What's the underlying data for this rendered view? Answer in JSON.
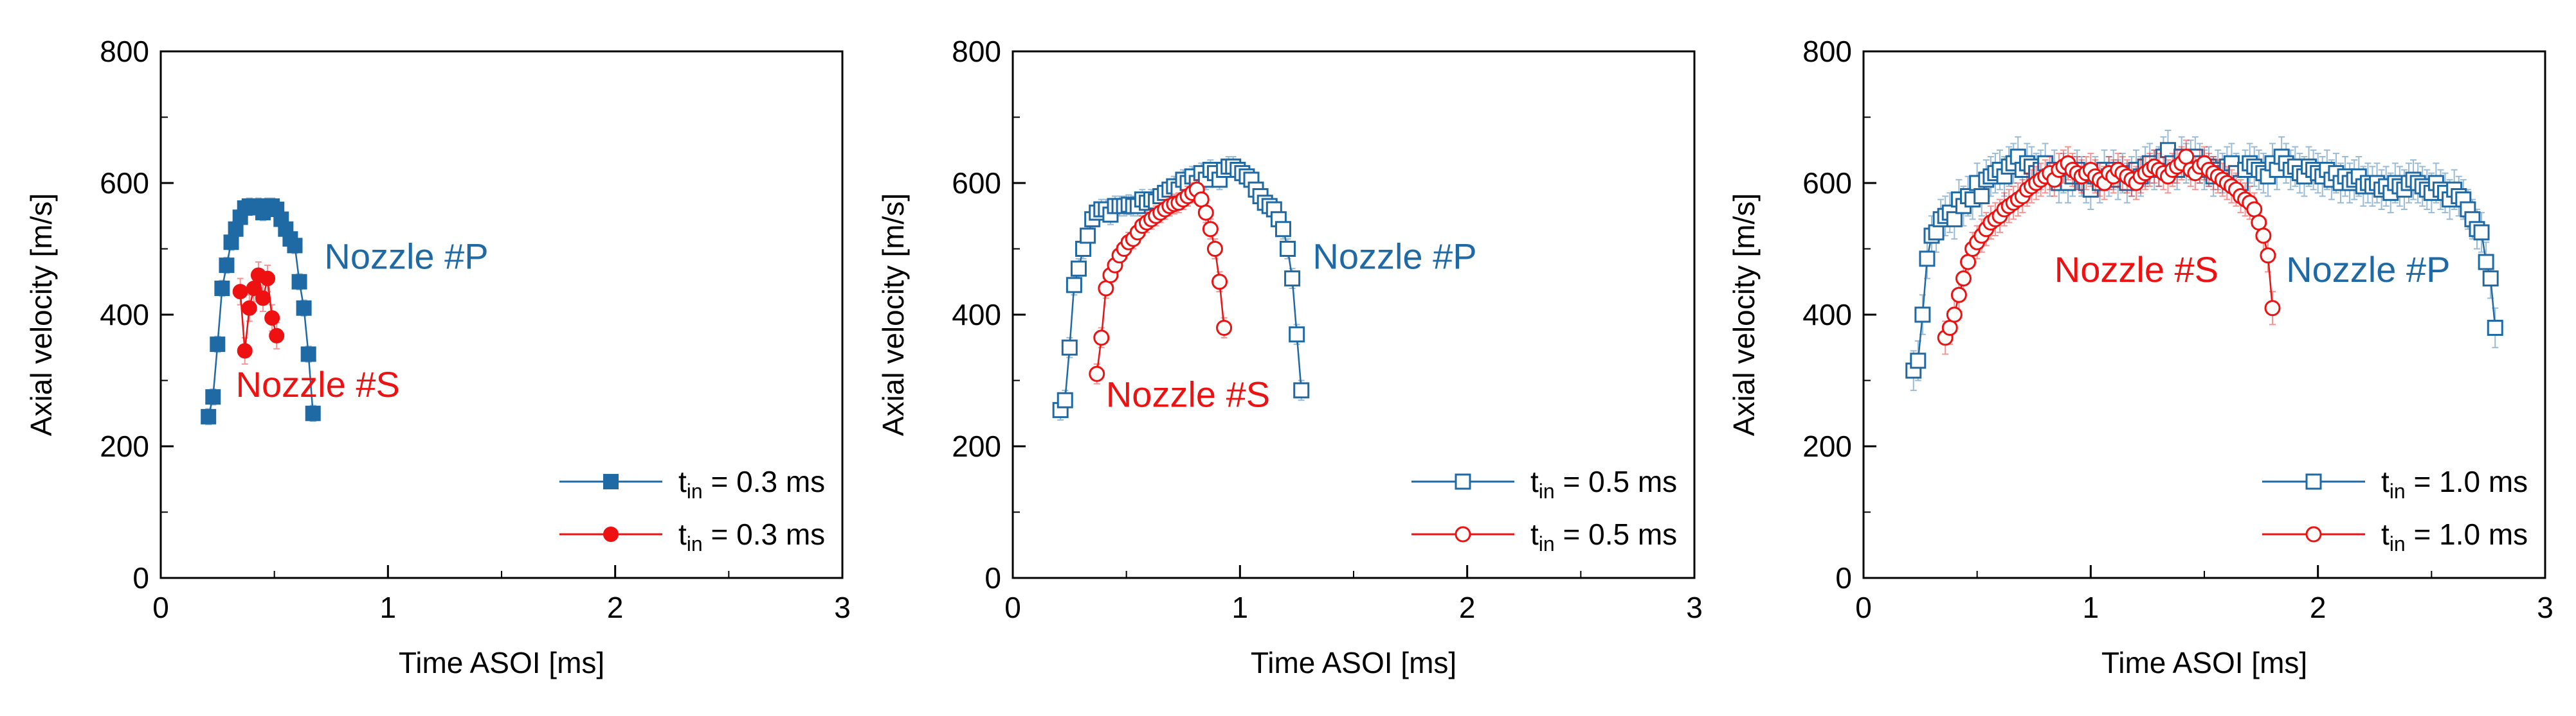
{
  "chart_data": [
    {
      "type": "scatter",
      "xlabel": "Time ASOI [ms]",
      "ylabel": "Axial velocity [m/s]",
      "xlim": [
        0,
        3
      ],
      "ylim": [
        0,
        800
      ],
      "xticks": [
        "0",
        "1",
        "2",
        "3"
      ],
      "yticks": [
        "0",
        "200",
        "400",
        "600",
        "800"
      ],
      "annotations": [
        {
          "text": "Nozzle #P",
          "color": "#1f6aa5",
          "x": 0.72,
          "y": 470
        },
        {
          "text": "Nozzle #S",
          "color": "#ee1111",
          "x": 0.33,
          "y": 275
        }
      ],
      "legend": {
        "position": "bottom-right"
      },
      "series": [
        {
          "name": "t_in = 0.3 ms",
          "legend_main": "t",
          "legend_sub": "in",
          "legend_rest": " = 0.3 ms",
          "color": "#1f6aa5",
          "marker": "filled-square",
          "x": [
            0.21,
            0.23,
            0.25,
            0.27,
            0.29,
            0.31,
            0.33,
            0.35,
            0.37,
            0.39,
            0.41,
            0.43,
            0.45,
            0.47,
            0.49,
            0.51,
            0.53,
            0.55,
            0.57,
            0.59,
            0.61,
            0.63,
            0.65,
            0.67
          ],
          "y": [
            245,
            275,
            355,
            440,
            475,
            510,
            530,
            548,
            562,
            565,
            563,
            565,
            555,
            565,
            565,
            560,
            545,
            530,
            515,
            505,
            450,
            410,
            340,
            250
          ],
          "err": 12
        },
        {
          "name": "t_in = 0.3 ms",
          "legend_main": "t",
          "legend_sub": "in",
          "legend_rest": " = 0.3 ms",
          "color": "#ee1111",
          "marker": "filled-circle",
          "x": [
            0.35,
            0.37,
            0.39,
            0.41,
            0.43,
            0.45,
            0.47,
            0.49,
            0.51
          ],
          "y": [
            435,
            345,
            410,
            440,
            460,
            425,
            455,
            395,
            368
          ],
          "err": 20
        }
      ]
    },
    {
      "type": "scatter",
      "xlabel": "Time ASOI [ms]",
      "ylabel": "Axial velocity [m/s]",
      "xlim": [
        0,
        3
      ],
      "ylim": [
        0,
        800
      ],
      "xticks": [
        "0",
        "1",
        "2",
        "3"
      ],
      "yticks": [
        "0",
        "200",
        "400",
        "600",
        "800"
      ],
      "annotations": [
        {
          "text": "Nozzle #P",
          "color": "#1f6aa5",
          "x": 1.32,
          "y": 470
        },
        {
          "text": "Nozzle #S",
          "color": "#ee1111",
          "x": 0.41,
          "y": 260
        }
      ],
      "legend": {
        "position": "bottom-right"
      },
      "series": [
        {
          "name": "t_in = 0.5 ms",
          "legend_main": "t",
          "legend_sub": "in",
          "legend_rest": " = 0.5 ms",
          "color": "#1f6aa5",
          "marker": "open-square",
          "x": [
            0.21,
            0.23,
            0.25,
            0.27,
            0.29,
            0.31,
            0.33,
            0.35,
            0.37,
            0.39,
            0.41,
            0.43,
            0.45,
            0.47,
            0.49,
            0.51,
            0.53,
            0.55,
            0.57,
            0.59,
            0.61,
            0.63,
            0.65,
            0.67,
            0.69,
            0.71,
            0.73,
            0.75,
            0.77,
            0.79,
            0.81,
            0.83,
            0.85,
            0.87,
            0.89,
            0.91,
            0.93,
            0.95,
            0.97,
            0.99,
            1.01,
            1.03,
            1.05,
            1.07,
            1.09,
            1.11,
            1.13,
            1.15,
            1.17,
            1.19,
            1.21,
            1.23,
            1.25,
            1.27
          ],
          "y": [
            255,
            270,
            350,
            445,
            470,
            500,
            520,
            545,
            555,
            560,
            560,
            552,
            565,
            565,
            565,
            567,
            565,
            565,
            575,
            570,
            575,
            572,
            580,
            585,
            590,
            595,
            590,
            605,
            600,
            610,
            600,
            615,
            605,
            620,
            615,
            605,
            620,
            625,
            625,
            620,
            615,
            610,
            605,
            590,
            580,
            570,
            565,
            560,
            545,
            530,
            500,
            455,
            370,
            285
          ],
          "err": 15
        },
        {
          "name": "t_in = 0.5 ms",
          "legend_main": "t",
          "legend_sub": "in",
          "legend_rest": " = 0.5 ms",
          "color": "#ee1111",
          "marker": "open-circle",
          "x": [
            0.37,
            0.39,
            0.41,
            0.43,
            0.45,
            0.47,
            0.49,
            0.51,
            0.53,
            0.55,
            0.57,
            0.59,
            0.61,
            0.63,
            0.65,
            0.67,
            0.69,
            0.71,
            0.73,
            0.75,
            0.77,
            0.79,
            0.81,
            0.83,
            0.85,
            0.87,
            0.89,
            0.91,
            0.93
          ],
          "y": [
            310,
            365,
            440,
            460,
            475,
            490,
            500,
            510,
            515,
            525,
            535,
            540,
            545,
            550,
            555,
            560,
            565,
            568,
            570,
            575,
            580,
            585,
            590,
            575,
            555,
            530,
            500,
            450,
            380
          ],
          "err": 15
        }
      ]
    },
    {
      "type": "scatter",
      "xlabel": "Time ASOI [ms]",
      "ylabel": "Axial velocity [m/s]",
      "xlim": [
        0,
        3
      ],
      "ylim": [
        0,
        800
      ],
      "xticks": [
        "0",
        "1",
        "2",
        "3"
      ],
      "yticks": [
        "0",
        "200",
        "400",
        "600",
        "800"
      ],
      "annotations": [
        {
          "text": "Nozzle #S",
          "color": "#ee1111",
          "x": 0.84,
          "y": 450
        },
        {
          "text": "Nozzle #P",
          "color": "#1f6aa5",
          "x": 1.86,
          "y": 450
        }
      ],
      "legend": {
        "position": "bottom-right"
      },
      "series": [
        {
          "name": "t_in = 1.0 ms",
          "legend_main": "t",
          "legend_sub": "in",
          "legend_rest": " = 1.0 ms",
          "color": "#1f6aa5",
          "marker": "open-square",
          "x": [
            0.22,
            0.24,
            0.26,
            0.28,
            0.3,
            0.32,
            0.34,
            0.36,
            0.38,
            0.4,
            0.42,
            0.44,
            0.46,
            0.48,
            0.5,
            0.52,
            0.54,
            0.56,
            0.58,
            0.6,
            0.62,
            0.64,
            0.66,
            0.68,
            0.7,
            0.72,
            0.74,
            0.76,
            0.78,
            0.8,
            0.82,
            0.84,
            0.86,
            0.88,
            0.9,
            0.92,
            0.94,
            0.96,
            0.98,
            1.0,
            1.02,
            1.04,
            1.06,
            1.08,
            1.1,
            1.12,
            1.14,
            1.16,
            1.18,
            1.2,
            1.22,
            1.24,
            1.26,
            1.28,
            1.3,
            1.32,
            1.34,
            1.36,
            1.38,
            1.4,
            1.42,
            1.44,
            1.46,
            1.48,
            1.5,
            1.52,
            1.54,
            1.56,
            1.58,
            1.6,
            1.62,
            1.64,
            1.66,
            1.68,
            1.7,
            1.72,
            1.74,
            1.76,
            1.78,
            1.8,
            1.82,
            1.84,
            1.86,
            1.88,
            1.9,
            1.92,
            1.94,
            1.96,
            1.98,
            2.0,
            2.02,
            2.04,
            2.06,
            2.08,
            2.1,
            2.12,
            2.14,
            2.16,
            2.18,
            2.2,
            2.22,
            2.24,
            2.26,
            2.28,
            2.3,
            2.32,
            2.34,
            2.36,
            2.38,
            2.4,
            2.42,
            2.44,
            2.46,
            2.48,
            2.5,
            2.52,
            2.54,
            2.56,
            2.58,
            2.6,
            2.62,
            2.64,
            2.66,
            2.68,
            2.7,
            2.72,
            2.74,
            2.76,
            2.78
          ],
          "y": [
            315,
            330,
            400,
            485,
            520,
            525,
            545,
            550,
            555,
            545,
            575,
            565,
            580,
            575,
            600,
            580,
            605,
            610,
            615,
            620,
            610,
            625,
            630,
            640,
            620,
            630,
            625,
            615,
            620,
            630,
            610,
            620,
            600,
            615,
            600,
            610,
            620,
            610,
            600,
            590,
            610,
            600,
            620,
            610,
            620,
            605,
            615,
            600,
            610,
            620,
            610,
            625,
            630,
            620,
            625,
            640,
            650,
            630,
            620,
            640,
            630,
            635,
            640,
            630,
            620,
            625,
            610,
            620,
            615,
            625,
            630,
            615,
            600,
            620,
            630,
            625,
            620,
            615,
            610,
            630,
            620,
            640,
            630,
            620,
            625,
            615,
            610,
            625,
            620,
            615,
            610,
            620,
            605,
            615,
            600,
            610,
            600,
            605,
            610,
            595,
            600,
            595,
            600,
            590,
            595,
            585,
            600,
            595,
            590,
            600,
            605,
            600,
            595,
            590,
            585,
            600,
            590,
            585,
            575,
            590,
            580,
            575,
            560,
            545,
            530,
            525,
            480,
            455,
            380
          ],
          "err": 30
        },
        {
          "name": "t_in = 1.0 ms",
          "legend_main": "t",
          "legend_sub": "in",
          "legend_rest": " = 1.0 ms",
          "color": "#ee1111",
          "marker": "open-circle",
          "x": [
            0.36,
            0.38,
            0.4,
            0.42,
            0.44,
            0.46,
            0.48,
            0.5,
            0.52,
            0.54,
            0.56,
            0.58,
            0.6,
            0.62,
            0.64,
            0.66,
            0.68,
            0.7,
            0.72,
            0.74,
            0.76,
            0.78,
            0.8,
            0.82,
            0.84,
            0.86,
            0.88,
            0.9,
            0.92,
            0.94,
            0.96,
            0.98,
            1.0,
            1.02,
            1.04,
            1.06,
            1.08,
            1.1,
            1.12,
            1.14,
            1.16,
            1.18,
            1.2,
            1.22,
            1.24,
            1.26,
            1.28,
            1.3,
            1.32,
            1.34,
            1.36,
            1.38,
            1.4,
            1.42,
            1.44,
            1.46,
            1.48,
            1.5,
            1.52,
            1.54,
            1.56,
            1.58,
            1.6,
            1.62,
            1.64,
            1.66,
            1.68,
            1.7,
            1.72,
            1.74,
            1.76,
            1.78,
            1.8
          ],
          "y": [
            365,
            380,
            400,
            430,
            455,
            480,
            500,
            510,
            520,
            530,
            540,
            545,
            550,
            560,
            565,
            570,
            575,
            580,
            590,
            595,
            600,
            605,
            610,
            615,
            605,
            620,
            625,
            630,
            620,
            615,
            610,
            615,
            620,
            610,
            605,
            600,
            615,
            610,
            620,
            615,
            610,
            605,
            600,
            610,
            615,
            620,
            625,
            620,
            615,
            610,
            620,
            625,
            630,
            640,
            620,
            615,
            625,
            630,
            620,
            615,
            610,
            605,
            600,
            595,
            590,
            580,
            575,
            570,
            560,
            540,
            520,
            490,
            410
          ],
          "err": 25
        }
      ]
    }
  ]
}
